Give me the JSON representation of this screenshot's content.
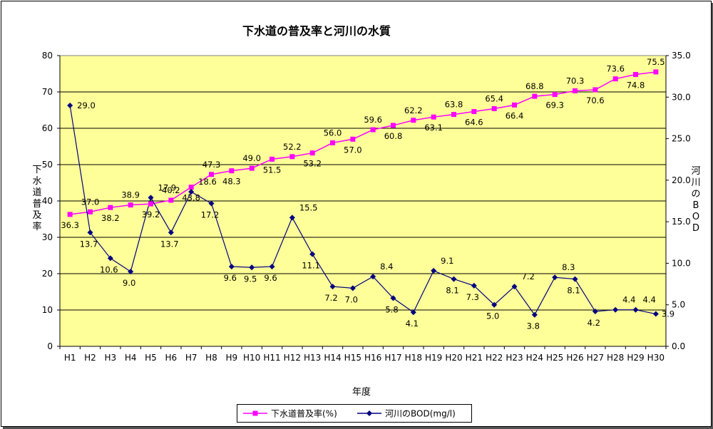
{
  "chart_data": {
    "type": "line",
    "title": "下水道の普及率と河川の水質",
    "xlabel": "年度",
    "ylabel_left": "下水道普及率",
    "ylabel_right": "河川のBOD",
    "categories": [
      "H1",
      "H2",
      "H3",
      "H4",
      "H5",
      "H6",
      "H7",
      "H8",
      "H9",
      "H10",
      "H11",
      "H12",
      "H13",
      "H14",
      "H15",
      "H16",
      "H17",
      "H18",
      "H19",
      "H20",
      "H21",
      "H22",
      "H23",
      "H24",
      "H25",
      "H26",
      "H27",
      "H28",
      "H29",
      "H30"
    ],
    "ylim_left": [
      0,
      80
    ],
    "yticks_left": [
      "0",
      "10",
      "20",
      "30",
      "40",
      "50",
      "60",
      "70",
      "80"
    ],
    "ylim_right": [
      0,
      35
    ],
    "yticks_right": [
      "0.0",
      "5.0",
      "10.0",
      "15.0",
      "20.0",
      "25.0",
      "30.0",
      "35.0"
    ],
    "grid": true,
    "legend_position": "bottom",
    "plot_bg": "#ffff99",
    "series": [
      {
        "name": "下水道普及率(%)",
        "axis": "left",
        "color": "#ff00ff",
        "marker": "square",
        "values": [
          36.3,
          37.0,
          38.2,
          38.9,
          39.2,
          40.2,
          43.8,
          47.3,
          48.3,
          49.0,
          51.5,
          52.2,
          53.2,
          56.0,
          57.0,
          59.6,
          60.8,
          62.2,
          63.1,
          63.8,
          64.6,
          65.4,
          66.4,
          68.8,
          69.3,
          70.3,
          70.6,
          73.6,
          74.8,
          75.5
        ],
        "labels": [
          "36.3",
          "37.0",
          "38.2",
          "38.9",
          "39.2",
          "40.2",
          "43.8",
          "47.3",
          "48.3",
          "49.0",
          "51.5",
          "52.2",
          "53.2",
          "56.0",
          "57.0",
          "59.6",
          "60.8",
          "62.2",
          "63.1",
          "63.8",
          "64.6",
          "65.4",
          "66.4",
          "68.8",
          "69.3",
          "70.3",
          "70.6",
          "73.6",
          "74.8",
          "75.5"
        ]
      },
      {
        "name": "河川のBOD(mg/l)",
        "axis": "right",
        "color": "#000080",
        "marker": "diamond",
        "values": [
          29.0,
          13.7,
          10.6,
          9.0,
          17.9,
          13.7,
          18.6,
          17.2,
          9.6,
          9.5,
          9.6,
          15.5,
          11.1,
          7.2,
          7.0,
          8.4,
          5.8,
          4.1,
          9.1,
          8.1,
          7.3,
          5.0,
          7.2,
          3.8,
          8.3,
          8.1,
          4.2,
          4.4,
          4.4,
          3.9
        ],
        "labels": [
          "29.0",
          "13.7",
          "10.6",
          "9.0",
          "17.9",
          "13.7",
          "18.6",
          "17.2",
          "9.6",
          "9.5",
          "9.6",
          "15.5",
          "11.1",
          "7.2",
          "7.0",
          "8.4",
          "5.8",
          "4.1",
          "9.1",
          "8.1",
          "7.3",
          "5.0",
          "7.2",
          "3.8",
          "8.3",
          "8.1",
          "4.2",
          "4.4",
          "4.4",
          "3.9"
        ]
      }
    ]
  }
}
